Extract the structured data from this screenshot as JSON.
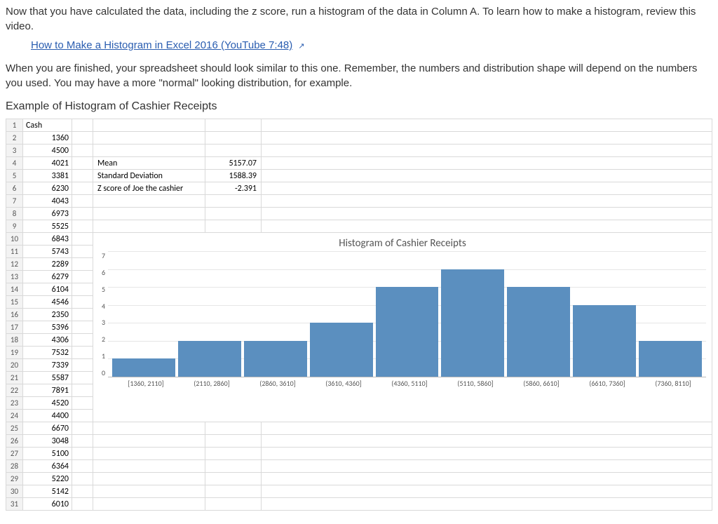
{
  "intro": {
    "para1": "Now that you have calculated the data, including the z score, run a histogram of the data in Column A. To learn how to make a histogram, review this video.",
    "link_text": "How to Make a Histogram in Excel 2016 (YouTube 7:48)",
    "para2": "When you are finished, your spreadsheet should look similar to this one. Remember, the numbers and distribution shape will depend on the numbers you used. You may have a more \"normal\" looking distribution, for example.",
    "example_title": "Example of Histogram of Cashier Receipts"
  },
  "spreadsheet": {
    "header_a": "Cash",
    "cash_values": [
      "1360",
      "4500",
      "4021",
      "3381",
      "6230",
      "4043",
      "6973",
      "5525",
      "6843",
      "5743",
      "2289",
      "6279",
      "6104",
      "4546",
      "2350",
      "5396",
      "4306",
      "7532",
      "7339",
      "5587",
      "7891",
      "4520",
      "4400",
      "6670",
      "3048",
      "5100",
      "6364",
      "5220",
      "5142",
      "6010"
    ],
    "stats": {
      "mean_label": "Mean",
      "mean_value": "5157.07",
      "sd_label": "Standard Deviation",
      "sd_value": "1588.39",
      "z_label": "Z score of Joe the cashier",
      "z_value": "-2.391"
    }
  },
  "chart": {
    "title": "Histogram of Cashier Receipts",
    "type": "histogram",
    "bar_color": "#5b8fbf",
    "grid_color": "#e6e6e6",
    "ylim_max": 7,
    "yticks": [
      "7",
      "6",
      "5",
      "4",
      "3",
      "2",
      "1",
      "0"
    ],
    "categories": [
      "[1360, 2110]",
      "(2110, 2860]",
      "(2860, 3610]",
      "(3610, 4360]",
      "(4360, 5110]",
      "(5110, 5860]",
      "(5860, 6610]",
      "(6610, 7360]",
      "(7360, 8110]"
    ],
    "values": [
      1,
      2,
      2,
      3,
      5,
      6,
      5,
      4,
      2
    ]
  }
}
